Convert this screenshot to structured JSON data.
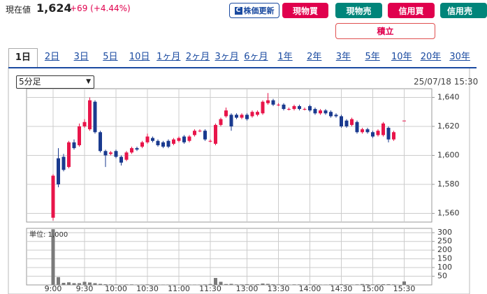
{
  "header": {
    "label": "現在値",
    "price": "1,624",
    "change": "+69 (+4.44%)"
  },
  "buttons": [
    "株価更新",
    "現物買",
    "現物売",
    "信用買",
    "信用売",
    "積立"
  ],
  "tabs": [
    "1日",
    "2日",
    "3日",
    "5日",
    "10日",
    "1ヶ月",
    "2ヶ月",
    "3ヶ月",
    "6ヶ月",
    "1年",
    "2年",
    "3年",
    "5年",
    "10年",
    "20年",
    "30年"
  ],
  "period_select": "5分足",
  "timestamp": "25/07/18 15:30",
  "chart_data": [
    {
      "type": "candlestick",
      "up_color": "#e8154a",
      "down_color": "#1a3a8f",
      "open": [
        1557,
        1598,
        1599,
        1592,
        1609,
        1607,
        1620,
        1618,
        1637,
        1616,
        1603,
        1601,
        1603,
        1599,
        1597,
        1602,
        1605,
        1606,
        1609,
        1612,
        1610,
        1609,
        1610,
        1608,
        1610,
        1613,
        1610,
        1614,
        1617,
        1617,
        1610,
        1608,
        1621,
        1627,
        1628,
        1628,
        1626,
        1628,
        1627,
        1628,
        1629,
        1636,
        1638,
        1635,
        1635,
        1632,
        1632,
        1634,
        1632,
        1634,
        1632,
        1629,
        1631,
        1630,
        1628,
        1627,
        1624,
        1621,
        1623,
        1616,
        1618,
        1616,
        1614,
        1614,
        1619,
        1611,
        null,
        1624
      ],
      "high": [
        1587,
        1605,
        1601,
        1610,
        1611,
        1622,
        1625,
        1640,
        1638,
        1617,
        1604,
        1603,
        1604,
        1600,
        1603,
        1606,
        1606,
        1610,
        1615,
        1613,
        1611,
        1610,
        1611,
        1612,
        1613,
        1614,
        1614,
        1618,
        1618,
        1618,
        1611,
        1622,
        1626,
        1633,
        1629,
        1629,
        1629,
        1629,
        1631,
        1631,
        1638,
        1643,
        1639,
        1636,
        1636,
        1633,
        1635,
        1635,
        1633,
        1635,
        1633,
        1632,
        1632,
        1631,
        1629,
        1628,
        1625,
        1626,
        1624,
        1619,
        1619,
        1617,
        1618,
        1623,
        1620,
        1617,
        null,
        1624
      ],
      "low": [
        1555,
        1578,
        1589,
        1591,
        1604,
        1606,
        1619,
        1617,
        1615,
        1602,
        1592,
        1600,
        1598,
        1593,
        1596,
        1601,
        1603,
        1605,
        1608,
        1609,
        1606,
        1605,
        1605,
        1607,
        1609,
        1608,
        1609,
        1613,
        1616,
        1610,
        1609,
        1607,
        1620,
        1626,
        1617,
        1625,
        1625,
        1624,
        1626,
        1627,
        1628,
        1635,
        1634,
        1634,
        1631,
        1631,
        1631,
        1631,
        1631,
        1630,
        1628,
        1628,
        1628,
        1626,
        1626,
        1619,
        1619,
        1620,
        1615,
        1615,
        1615,
        1612,
        1613,
        1613,
        1609,
        1610,
        null,
        1624
      ],
      "close": [
        1586,
        1580,
        1590,
        1609,
        1605,
        1620,
        1623,
        1638,
        1616,
        1603,
        1600,
        1602,
        1599,
        1595,
        1602,
        1605,
        1604,
        1609,
        1613,
        1610,
        1607,
        1606,
        1606,
        1611,
        1612,
        1609,
        1613,
        1617,
        1617,
        1611,
        1610,
        1621,
        1625,
        1631,
        1620,
        1626,
        1628,
        1625,
        1630,
        1630,
        1637,
        1638,
        1635,
        1635,
        1632,
        1632,
        1634,
        1632,
        1632,
        1631,
        1629,
        1631,
        1629,
        1627,
        1627,
        1620,
        1620,
        1625,
        1616,
        1618,
        1616,
        1613,
        1617,
        1622,
        1611,
        1616,
        null,
        1624
      ],
      "ylim": [
        1554,
        1646
      ],
      "yticks": [
        {
          "value": 1560,
          "label": "1,560"
        },
        {
          "value": 1580,
          "label": "1,580"
        },
        {
          "value": 1600,
          "label": "1,600"
        },
        {
          "value": 1620,
          "label": "1,620"
        },
        {
          "value": 1640,
          "label": "1,640"
        }
      ],
      "grid": true
    },
    {
      "type": "bar",
      "color": "#7a7a7a",
      "unit_label": "単位: 1,000",
      "categories": [
        "9:00",
        null,
        null,
        null,
        null,
        null,
        "9:30",
        null,
        null,
        null,
        null,
        null,
        "10:00",
        null,
        null,
        null,
        null,
        null,
        "10:30",
        null,
        null,
        null,
        null,
        null,
        "11:00",
        null,
        null,
        null,
        null,
        null,
        "11:30",
        null,
        null,
        null,
        null,
        null,
        null,
        "13:00",
        null,
        null,
        null,
        null,
        null,
        "13:30",
        null,
        null,
        null,
        null,
        null,
        "14:00",
        null,
        null,
        null,
        null,
        null,
        "14:30",
        null,
        null,
        null,
        null,
        null,
        "15:00",
        null,
        null,
        null,
        null,
        null,
        "15:30"
      ],
      "values": [
        320,
        45,
        12,
        15,
        10,
        10,
        18,
        14,
        10,
        6,
        4,
        3,
        3,
        2,
        3,
        3,
        2,
        2,
        3,
        2,
        2,
        2,
        2,
        2,
        2,
        2,
        2,
        2,
        2,
        3,
        5,
        40,
        18,
        5,
        6,
        3,
        3,
        4,
        3,
        4,
        8,
        6,
        4,
        3,
        3,
        2,
        3,
        3,
        2,
        3,
        3,
        2,
        2,
        3,
        2,
        4,
        3,
        2,
        3,
        5,
        4,
        3,
        3,
        4,
        4,
        3,
        null,
        20
      ],
      "ylim": [
        0,
        325
      ],
      "yticks": [
        50,
        100,
        150,
        200,
        250,
        300
      ],
      "grid": true
    }
  ]
}
